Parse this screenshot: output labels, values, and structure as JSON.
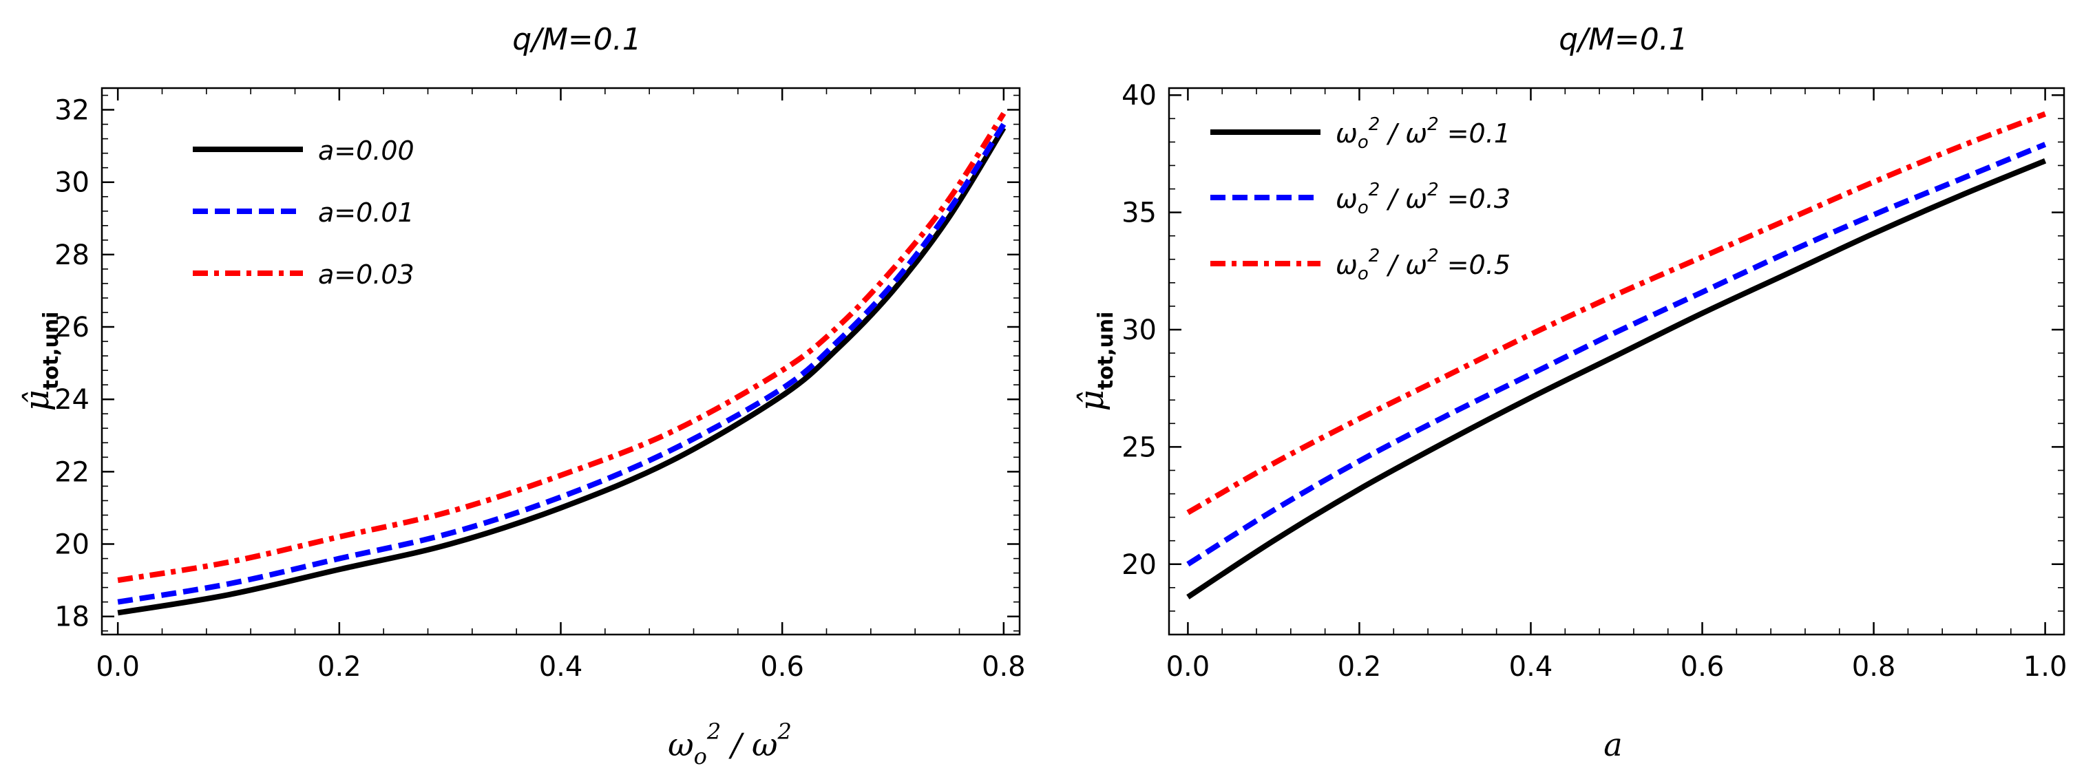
{
  "chart_data": [
    {
      "type": "line",
      "title": "q/M=0.1",
      "xlabel": "ω_o²/ω²",
      "ylabel": "μ̂_tot,uni",
      "xlim": [
        0.0,
        0.8
      ],
      "ylim": [
        17.5,
        32.6
      ],
      "xticks": [
        "0.0",
        "0.2",
        "0.4",
        "0.6",
        "0.8"
      ],
      "yticks": [
        "18",
        "20",
        "22",
        "24",
        "26",
        "28",
        "30",
        "32"
      ],
      "legend_position": "top-left",
      "series": [
        {
          "name": "a=0.00",
          "color": "#000000",
          "style": "solid",
          "x": [
            0.0,
            0.1,
            0.2,
            0.3,
            0.4,
            0.5,
            0.6,
            0.65,
            0.7,
            0.75,
            0.8
          ],
          "y": [
            18.1,
            18.6,
            19.3,
            20.0,
            21.0,
            22.3,
            24.1,
            25.4,
            27.0,
            29.0,
            31.5
          ]
        },
        {
          "name": "a=0.01",
          "color": "#0000ff",
          "style": "dashed",
          "x": [
            0.0,
            0.1,
            0.2,
            0.3,
            0.4,
            0.5,
            0.6,
            0.65,
            0.7,
            0.75,
            0.8
          ],
          "y": [
            18.4,
            18.9,
            19.6,
            20.3,
            21.3,
            22.6,
            24.3,
            25.6,
            27.2,
            29.2,
            31.6
          ]
        },
        {
          "name": "a=0.03",
          "color": "#ff0000",
          "style": "dashdot",
          "x": [
            0.0,
            0.1,
            0.2,
            0.3,
            0.4,
            0.5,
            0.6,
            0.65,
            0.7,
            0.75,
            0.8
          ],
          "y": [
            19.0,
            19.5,
            20.2,
            20.9,
            21.9,
            23.1,
            24.8,
            26.0,
            27.6,
            29.5,
            31.9
          ]
        }
      ]
    },
    {
      "type": "line",
      "title": "q/M=0.1",
      "xlabel": "a",
      "ylabel": "μ̂_tot,uni",
      "xlim": [
        0.0,
        1.0
      ],
      "ylim": [
        17.0,
        40.3
      ],
      "xticks": [
        "0.0",
        "0.2",
        "0.4",
        "0.6",
        "0.8",
        "1.0"
      ],
      "yticks": [
        "20",
        "25",
        "30",
        "35",
        "40"
      ],
      "legend_position": "top-left",
      "series": [
        {
          "name": "ω_o²/ω²=0.1",
          "color": "#000000",
          "style": "solid",
          "x": [
            0.0,
            0.1,
            0.2,
            0.3,
            0.4,
            0.5,
            0.6,
            0.7,
            0.8,
            0.9,
            1.0
          ],
          "y": [
            18.6,
            21.0,
            23.2,
            25.2,
            27.1,
            28.9,
            30.7,
            32.4,
            34.1,
            35.7,
            37.2
          ]
        },
        {
          "name": "ω_o²/ω²=0.3",
          "color": "#0000ff",
          "style": "dashed",
          "x": [
            0.0,
            0.1,
            0.2,
            0.3,
            0.4,
            0.5,
            0.6,
            0.7,
            0.8,
            0.9,
            1.0
          ],
          "y": [
            20.0,
            22.3,
            24.4,
            26.3,
            28.1,
            29.9,
            31.6,
            33.3,
            34.9,
            36.4,
            37.9
          ]
        },
        {
          "name": "ω_o²/ω²=0.5",
          "color": "#ff0000",
          "style": "dashdot",
          "x": [
            0.0,
            0.1,
            0.2,
            0.3,
            0.4,
            0.5,
            0.6,
            0.7,
            0.8,
            0.9,
            1.0
          ],
          "y": [
            22.2,
            24.3,
            26.2,
            28.0,
            29.8,
            31.5,
            33.1,
            34.7,
            36.3,
            37.8,
            39.2
          ]
        }
      ]
    }
  ]
}
